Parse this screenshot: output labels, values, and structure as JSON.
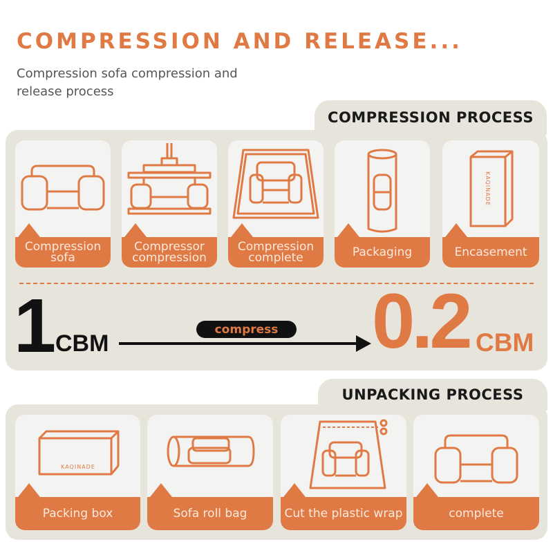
{
  "header": {
    "title": "COMPRESSION AND RELEASE...",
    "subtitle": "Compression sofa compression and release process"
  },
  "compression": {
    "heading": "COMPRESSION PROCESS",
    "steps": [
      {
        "label": "Compression sofa",
        "icon": "sofa-icon"
      },
      {
        "label": "Compressor compression",
        "icon": "press-icon"
      },
      {
        "label": "Compression complete",
        "icon": "compressed-sofa-icon"
      },
      {
        "label": "Packaging",
        "icon": "roll-icon"
      },
      {
        "label": "Encasement",
        "icon": "box-icon",
        "box_text": "KAQINADE"
      }
    ]
  },
  "volume": {
    "before_value": "1",
    "before_unit": "CBM",
    "action": "compress",
    "after_value": "0.2",
    "after_unit": "CBM"
  },
  "unpacking": {
    "heading": "UNPACKING PROCESS",
    "steps": [
      {
        "label": "Packing box",
        "icon": "box-icon",
        "box_text": "KAQINADE"
      },
      {
        "label": "Sofa roll bag",
        "icon": "roll-bag-icon"
      },
      {
        "label": "Cut the plastic wrap",
        "icon": "scissors-icon"
      },
      {
        "label": "complete",
        "icon": "sofa-icon"
      }
    ]
  },
  "colors": {
    "accent": "#e07a45",
    "panel": "#e7e4db",
    "card": "#f3f3f2",
    "text": "#111111"
  }
}
